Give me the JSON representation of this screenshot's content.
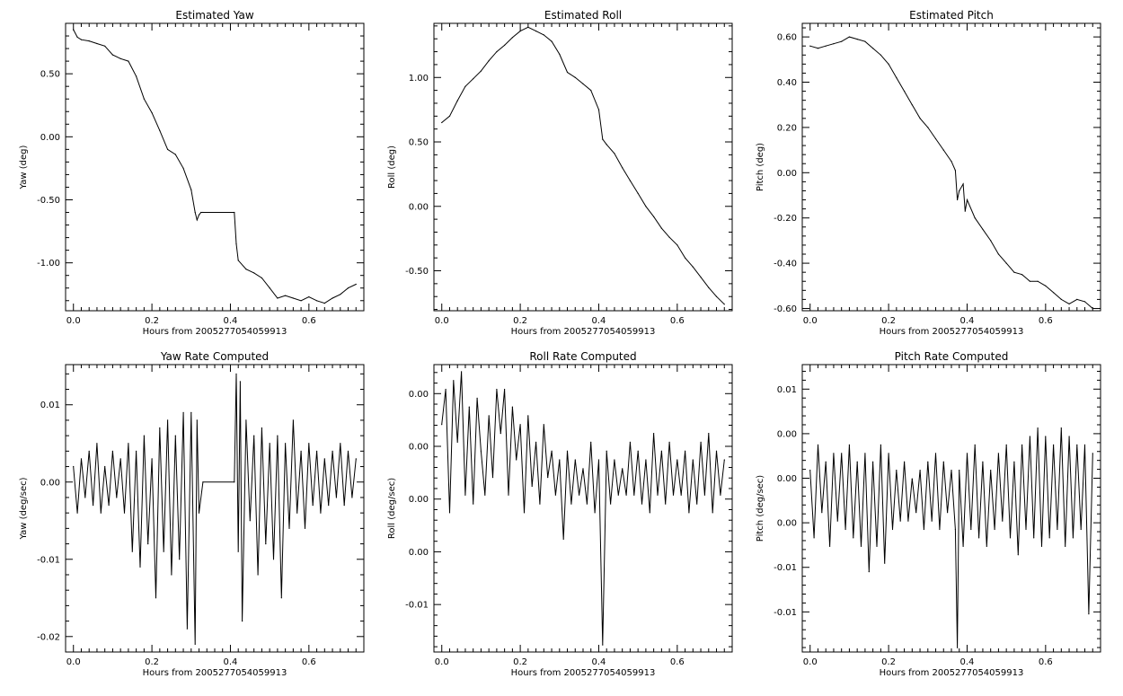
{
  "chart_data": [
    {
      "type": "line",
      "title": "Estimated Yaw",
      "xlabel": "Hours from 2005277054059913",
      "ylabel": "Yaw (deg)",
      "xlim": [
        -0.02,
        0.74
      ],
      "ylim": [
        -1.38,
        0.9
      ],
      "xticks": [
        "0.0",
        "0.2",
        "0.4",
        "0.6"
      ],
      "yticks": [
        "0.50",
        "0.00",
        "-0.50",
        "-1.00"
      ],
      "series": [
        {
          "x": [
            0.0,
            0.01,
            0.02,
            0.04,
            0.06,
            0.08,
            0.1,
            0.12,
            0.14,
            0.16,
            0.18,
            0.2,
            0.22,
            0.24,
            0.26,
            0.28,
            0.3,
            0.31,
            0.315,
            0.32,
            0.325,
            0.33,
            0.41,
            0.415,
            0.42,
            0.44,
            0.46,
            0.48,
            0.5,
            0.52,
            0.54,
            0.56,
            0.58,
            0.6,
            0.62,
            0.64,
            0.66,
            0.68,
            0.7,
            0.72
          ],
          "y": [
            0.85,
            0.79,
            0.77,
            0.76,
            0.74,
            0.72,
            0.65,
            0.62,
            0.6,
            0.48,
            0.3,
            0.19,
            0.05,
            -0.1,
            -0.14,
            -0.25,
            -0.42,
            -0.6,
            -0.66,
            -0.62,
            -0.6,
            -0.6,
            -0.6,
            -0.85,
            -0.98,
            -1.05,
            -1.08,
            -1.12,
            -1.2,
            -1.28,
            -1.26,
            -1.28,
            -1.3,
            -1.27,
            -1.3,
            -1.32,
            -1.28,
            -1.25,
            -1.2,
            -1.17
          ]
        }
      ]
    },
    {
      "type": "line",
      "title": "Estimated Roll",
      "xlabel": "Hours from 2005277054059913",
      "ylabel": "Roll (deg)",
      "xlim": [
        -0.02,
        0.74
      ],
      "ylim": [
        -0.81,
        1.42
      ],
      "xticks": [
        "0.0",
        "0.2",
        "0.4",
        "0.6"
      ],
      "yticks": [
        "1.00",
        "0.50",
        "0.00",
        "-0.50"
      ],
      "series": [
        {
          "x": [
            0.0,
            0.02,
            0.04,
            0.06,
            0.08,
            0.1,
            0.12,
            0.14,
            0.16,
            0.18,
            0.2,
            0.22,
            0.24,
            0.26,
            0.28,
            0.3,
            0.32,
            0.34,
            0.36,
            0.38,
            0.4,
            0.41,
            0.42,
            0.44,
            0.46,
            0.48,
            0.5,
            0.52,
            0.54,
            0.56,
            0.58,
            0.6,
            0.62,
            0.64,
            0.66,
            0.68,
            0.7,
            0.72
          ],
          "y": [
            0.65,
            0.7,
            0.82,
            0.93,
            0.99,
            1.05,
            1.13,
            1.2,
            1.25,
            1.31,
            1.36,
            1.39,
            1.36,
            1.33,
            1.28,
            1.18,
            1.04,
            1.0,
            0.95,
            0.9,
            0.75,
            0.52,
            0.48,
            0.41,
            0.3,
            0.2,
            0.1,
            0.0,
            -0.08,
            -0.17,
            -0.24,
            -0.3,
            -0.4,
            -0.47,
            -0.55,
            -0.63,
            -0.7,
            -0.76
          ]
        }
      ]
    },
    {
      "type": "line",
      "title": "Estimated Pitch",
      "xlabel": "Hours from 2005277054059913",
      "ylabel": "Pitch (deg)",
      "xlim": [
        -0.02,
        0.74
      ],
      "ylim": [
        -0.61,
        0.66
      ],
      "xticks": [
        "0.0",
        "0.2",
        "0.4",
        "0.6"
      ],
      "yticks": [
        "0.60",
        "0.40",
        "0.20",
        "0.00",
        "-0.20",
        "-0.40",
        "-0.60"
      ],
      "series": [
        {
          "x": [
            0.0,
            0.02,
            0.04,
            0.06,
            0.08,
            0.1,
            0.12,
            0.14,
            0.16,
            0.18,
            0.2,
            0.22,
            0.24,
            0.26,
            0.28,
            0.3,
            0.32,
            0.34,
            0.36,
            0.37,
            0.375,
            0.38,
            0.39,
            0.395,
            0.4,
            0.42,
            0.44,
            0.46,
            0.48,
            0.5,
            0.52,
            0.54,
            0.56,
            0.58,
            0.6,
            0.62,
            0.64,
            0.66,
            0.68,
            0.7,
            0.72
          ],
          "y": [
            0.56,
            0.55,
            0.56,
            0.57,
            0.58,
            0.6,
            0.59,
            0.58,
            0.55,
            0.52,
            0.48,
            0.42,
            0.36,
            0.3,
            0.24,
            0.2,
            0.15,
            0.1,
            0.05,
            0.01,
            -0.12,
            -0.08,
            -0.05,
            -0.17,
            -0.12,
            -0.2,
            -0.25,
            -0.3,
            -0.36,
            -0.4,
            -0.44,
            -0.45,
            -0.48,
            -0.48,
            -0.5,
            -0.53,
            -0.56,
            -0.58,
            -0.56,
            -0.57,
            -0.6
          ]
        }
      ]
    },
    {
      "type": "line",
      "title": "Yaw Rate Computed",
      "xlabel": "Hours from 2005277054059913",
      "ylabel": "Yaw (deg/sec)",
      "xlim": [
        -0.02,
        0.74
      ],
      "ylim": [
        -0.022,
        0.0152
      ],
      "xticks": [
        "0.0",
        "0.2",
        "0.4",
        "0.6"
      ],
      "yticks": [
        "0.01",
        "0.00",
        "-0.01",
        "-0.02"
      ],
      "series": [
        {
          "x": [
            0.0,
            0.01,
            0.02,
            0.03,
            0.04,
            0.05,
            0.06,
            0.07,
            0.08,
            0.09,
            0.1,
            0.11,
            0.12,
            0.13,
            0.14,
            0.15,
            0.16,
            0.17,
            0.18,
            0.19,
            0.2,
            0.21,
            0.22,
            0.23,
            0.24,
            0.25,
            0.26,
            0.27,
            0.28,
            0.29,
            0.3,
            0.31,
            0.315,
            0.32,
            0.33,
            0.41,
            0.415,
            0.42,
            0.425,
            0.43,
            0.44,
            0.45,
            0.46,
            0.47,
            0.48,
            0.49,
            0.5,
            0.51,
            0.52,
            0.53,
            0.54,
            0.55,
            0.56,
            0.57,
            0.58,
            0.59,
            0.6,
            0.61,
            0.62,
            0.63,
            0.64,
            0.65,
            0.66,
            0.67,
            0.68,
            0.69,
            0.7,
            0.71,
            0.72
          ],
          "y": [
            0.002,
            -0.004,
            0.003,
            -0.002,
            0.004,
            -0.003,
            0.005,
            -0.004,
            0.002,
            -0.003,
            0.004,
            -0.002,
            0.003,
            -0.004,
            0.005,
            -0.009,
            0.004,
            -0.011,
            0.006,
            -0.008,
            0.003,
            -0.015,
            0.007,
            -0.009,
            0.008,
            -0.012,
            0.006,
            -0.01,
            0.009,
            -0.019,
            0.009,
            -0.021,
            0.008,
            -0.004,
            0.0,
            0.0,
            0.014,
            -0.009,
            0.013,
            -0.018,
            0.008,
            -0.005,
            0.006,
            -0.012,
            0.007,
            -0.008,
            0.005,
            -0.01,
            0.006,
            -0.015,
            0.005,
            -0.006,
            0.008,
            -0.004,
            0.004,
            -0.006,
            0.005,
            -0.003,
            0.004,
            -0.004,
            0.003,
            -0.003,
            0.004,
            -0.002,
            0.005,
            -0.003,
            0.004,
            -0.002,
            0.003
          ]
        }
      ]
    },
    {
      "type": "line",
      "title": "Roll Rate Computed",
      "xlabel": "Hours from 2005277054059913",
      "ylabel": "Roll (deg/sec)",
      "xlim": [
        -0.02,
        0.74
      ],
      "ylim": [
        -0.0198,
        0.0128
      ],
      "xticks": [
        "0.0",
        "0.2",
        "0.4",
        "0.6"
      ],
      "yticks": [
        "0.00",
        "0.00",
        "0.00",
        "0.00",
        "-0.01"
      ],
      "series": [
        {
          "x": [
            0.0,
            0.01,
            0.02,
            0.03,
            0.04,
            0.05,
            0.06,
            0.07,
            0.08,
            0.09,
            0.1,
            0.11,
            0.12,
            0.13,
            0.14,
            0.15,
            0.16,
            0.17,
            0.18,
            0.19,
            0.2,
            0.21,
            0.22,
            0.23,
            0.24,
            0.25,
            0.26,
            0.27,
            0.28,
            0.29,
            0.3,
            0.31,
            0.32,
            0.33,
            0.34,
            0.35,
            0.36,
            0.37,
            0.38,
            0.39,
            0.4,
            0.41,
            0.42,
            0.43,
            0.44,
            0.45,
            0.46,
            0.47,
            0.48,
            0.49,
            0.5,
            0.51,
            0.52,
            0.53,
            0.54,
            0.55,
            0.56,
            0.57,
            0.58,
            0.59,
            0.6,
            0.61,
            0.62,
            0.63,
            0.64,
            0.65,
            0.66,
            0.67,
            0.68,
            0.69,
            0.7,
            0.71,
            0.72
          ],
          "y": [
            0.006,
            0.01,
            -0.004,
            0.011,
            0.004,
            0.012,
            -0.002,
            0.008,
            -0.003,
            0.009,
            0.003,
            -0.002,
            0.007,
            0.0,
            0.01,
            0.005,
            0.01,
            -0.002,
            0.008,
            0.002,
            0.006,
            -0.004,
            0.007,
            -0.001,
            0.004,
            -0.003,
            0.006,
            0.0,
            0.003,
            -0.002,
            0.002,
            -0.007,
            0.003,
            -0.003,
            0.002,
            -0.002,
            0.001,
            -0.003,
            0.004,
            -0.004,
            0.002,
            -0.019,
            0.003,
            -0.003,
            0.002,
            -0.002,
            0.001,
            -0.002,
            0.004,
            -0.002,
            0.003,
            -0.003,
            0.002,
            -0.004,
            0.005,
            -0.002,
            0.003,
            -0.003,
            0.004,
            -0.002,
            0.002,
            -0.002,
            0.003,
            -0.004,
            0.002,
            -0.003,
            0.004,
            -0.002,
            0.005,
            -0.004,
            0.003,
            -0.002,
            0.002
          ]
        }
      ]
    },
    {
      "type": "line",
      "title": "Pitch Rate Computed",
      "xlabel": "Hours from 2005277054059913",
      "ylabel": "Pitch (deg/sec)",
      "xlim": [
        -0.02,
        0.74
      ],
      "ylim": [
        -0.0185,
        0.0155
      ],
      "xticks": [
        "0.0",
        "0.2",
        "0.4",
        "0.6"
      ],
      "yticks": [
        "0.01",
        "0.00",
        "0.00",
        "0.00",
        "-0.01",
        "-0.01"
      ],
      "series": [
        {
          "x": [
            0.0,
            0.01,
            0.02,
            0.03,
            0.04,
            0.05,
            0.06,
            0.07,
            0.08,
            0.09,
            0.1,
            0.11,
            0.12,
            0.13,
            0.14,
            0.15,
            0.16,
            0.17,
            0.18,
            0.19,
            0.2,
            0.21,
            0.22,
            0.23,
            0.24,
            0.25,
            0.26,
            0.27,
            0.28,
            0.29,
            0.3,
            0.31,
            0.32,
            0.33,
            0.34,
            0.35,
            0.36,
            0.37,
            0.375,
            0.38,
            0.39,
            0.4,
            0.41,
            0.42,
            0.43,
            0.44,
            0.45,
            0.46,
            0.47,
            0.48,
            0.49,
            0.5,
            0.51,
            0.52,
            0.53,
            0.54,
            0.55,
            0.56,
            0.57,
            0.58,
            0.59,
            0.6,
            0.61,
            0.62,
            0.63,
            0.64,
            0.65,
            0.66,
            0.67,
            0.68,
            0.69,
            0.7,
            0.71,
            0.72
          ],
          "y": [
            0.003,
            -0.005,
            0.006,
            -0.002,
            0.004,
            -0.006,
            0.005,
            -0.003,
            0.005,
            -0.004,
            0.006,
            -0.005,
            0.004,
            -0.006,
            0.005,
            -0.009,
            0.004,
            -0.006,
            0.006,
            -0.008,
            0.005,
            -0.004,
            0.003,
            -0.003,
            0.004,
            -0.003,
            0.002,
            -0.002,
            0.003,
            -0.004,
            0.004,
            -0.003,
            0.005,
            -0.004,
            0.004,
            -0.002,
            0.003,
            -0.004,
            -0.018,
            0.003,
            -0.006,
            0.005,
            -0.004,
            0.006,
            -0.005,
            0.004,
            -0.006,
            0.003,
            -0.004,
            0.005,
            -0.003,
            0.006,
            -0.005,
            0.004,
            -0.007,
            0.006,
            -0.004,
            0.007,
            -0.005,
            0.008,
            -0.006,
            0.007,
            -0.005,
            0.006,
            -0.004,
            0.008,
            -0.006,
            0.007,
            -0.005,
            0.006,
            -0.004,
            0.006,
            -0.014,
            0.005
          ]
        }
      ]
    }
  ]
}
